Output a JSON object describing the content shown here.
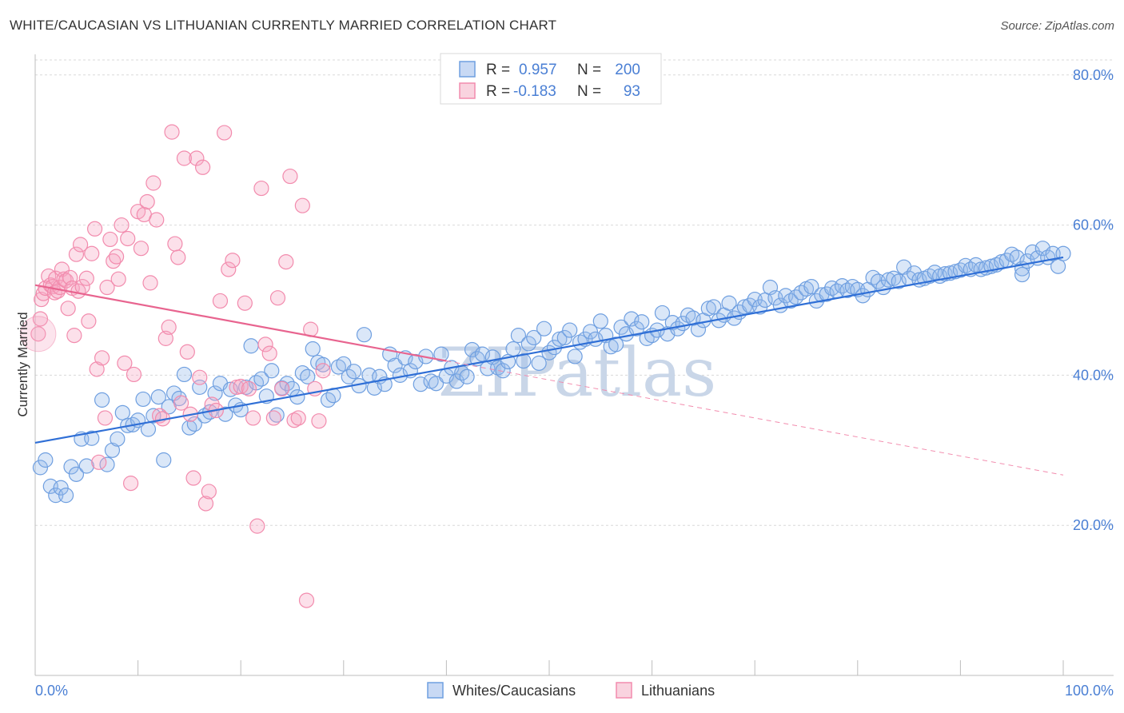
{
  "header": {
    "title": "WHITE/CAUCASIAN VS LITHUANIAN CURRENTLY MARRIED CORRELATION CHART",
    "source": "Source: ZipAtlas.com"
  },
  "watermark": "ZIPatlas",
  "legend": {
    "rows": [
      {
        "r_label": "R =",
        "r_value": "0.957",
        "n_label": "N =",
        "n_value": "200",
        "color": "#6f9fe0"
      },
      {
        "r_label": "R =",
        "r_value": "-0.183",
        "n_label": "N =",
        "n_value": "93",
        "color": "#f28bad"
      }
    ]
  },
  "bottom_legend": [
    {
      "label": "Whites/Caucasians",
      "color": "#6f9fe0"
    },
    {
      "label": "Lithuanians",
      "color": "#f28bad"
    }
  ],
  "chart_data": {
    "type": "scatter",
    "ylabel": "Currently Married",
    "xlabel": "",
    "xlim": [
      0,
      100
    ],
    "ylim": [
      0,
      82
    ],
    "x_tick_labels": [
      "0.0%",
      "100.0%"
    ],
    "y_ticks": [
      20,
      40,
      60,
      80
    ],
    "y_tick_labels": [
      "20.0%",
      "40.0%",
      "60.0%",
      "80.0%"
    ],
    "grid": true,
    "series": [
      {
        "name": "Whites/Caucasians",
        "color": "#6f9fe0",
        "trend": {
          "x": [
            0,
            100
          ],
          "y": [
            31.0,
            55.7
          ],
          "style": "solid"
        },
        "points": [
          [
            0.5,
            27.7
          ],
          [
            1,
            28.7
          ],
          [
            1.5,
            25.2
          ],
          [
            2,
            24.0
          ],
          [
            2.5,
            25.0
          ],
          [
            3,
            24.0
          ],
          [
            3.5,
            27.8
          ],
          [
            4,
            26.8
          ],
          [
            4.5,
            31.5
          ],
          [
            5,
            27.9
          ],
          [
            5.5,
            31.6
          ],
          [
            6.5,
            36.7
          ],
          [
            7,
            28.1
          ],
          [
            7.5,
            30.0
          ],
          [
            8,
            31.5
          ],
          [
            8.5,
            35.0
          ],
          [
            9,
            33.3
          ],
          [
            9.5,
            33.4
          ],
          [
            10,
            34.0
          ],
          [
            10.5,
            36.8
          ],
          [
            11,
            32.8
          ],
          [
            11.5,
            34.6
          ],
          [
            12,
            37.1
          ],
          [
            12.5,
            28.7
          ],
          [
            13,
            35.8
          ],
          [
            13.5,
            37.6
          ],
          [
            14,
            36.9
          ],
          [
            14.5,
            40.1
          ],
          [
            15,
            33.0
          ],
          [
            15.5,
            33.5
          ],
          [
            16,
            38.4
          ],
          [
            16.5,
            34.6
          ],
          [
            17,
            35.1
          ],
          [
            17.5,
            37.6
          ],
          [
            18,
            38.9
          ],
          [
            18.5,
            34.8
          ],
          [
            19,
            38.1
          ],
          [
            19.5,
            36.0
          ],
          [
            20,
            35.4
          ],
          [
            20.5,
            38.4
          ],
          [
            21,
            43.9
          ],
          [
            21.5,
            39.0
          ],
          [
            22,
            39.5
          ],
          [
            22.5,
            37.2
          ],
          [
            23,
            40.6
          ],
          [
            23.5,
            34.7
          ],
          [
            24,
            38.3
          ],
          [
            24.5,
            38.9
          ],
          [
            25,
            38.2
          ],
          [
            25.5,
            37.1
          ],
          [
            26,
            40.3
          ],
          [
            26.5,
            39.8
          ],
          [
            27,
            43.5
          ],
          [
            27.5,
            41.7
          ],
          [
            28,
            41.4
          ],
          [
            28.5,
            36.7
          ],
          [
            29,
            37.3
          ],
          [
            29.5,
            41.1
          ],
          [
            30,
            41.5
          ],
          [
            30.5,
            39.8
          ],
          [
            31,
            40.5
          ],
          [
            31.5,
            38.6
          ],
          [
            32,
            45.4
          ],
          [
            32.5,
            40.0
          ],
          [
            33,
            38.3
          ],
          [
            33.5,
            39.8
          ],
          [
            34,
            38.8
          ],
          [
            34.5,
            42.8
          ],
          [
            35,
            41.3
          ],
          [
            35.5,
            40.0
          ],
          [
            36,
            42.3
          ],
          [
            36.5,
            40.6
          ],
          [
            37,
            41.8
          ],
          [
            37.5,
            38.8
          ],
          [
            38,
            42.5
          ],
          [
            38.5,
            39.2
          ],
          [
            39,
            38.9
          ],
          [
            39.5,
            42.8
          ],
          [
            40,
            39.9
          ],
          [
            40.5,
            41.0
          ],
          [
            41,
            39.2
          ],
          [
            41.5,
            40.3
          ],
          [
            42,
            39.8
          ],
          [
            42.5,
            43.4
          ],
          [
            43,
            42.2
          ],
          [
            43.5,
            42.8
          ],
          [
            44,
            40.9
          ],
          [
            44.5,
            42.4
          ],
          [
            45,
            41.0
          ],
          [
            45.5,
            40.6
          ],
          [
            46,
            41.8
          ],
          [
            46.5,
            43.5
          ],
          [
            47,
            45.3
          ],
          [
            47.5,
            41.9
          ],
          [
            48,
            44.2
          ],
          [
            48.5,
            45.0
          ],
          [
            49,
            41.6
          ],
          [
            49.5,
            46.2
          ],
          [
            50,
            43.0
          ],
          [
            50.5,
            43.7
          ],
          [
            51,
            44.8
          ],
          [
            51.5,
            45.0
          ],
          [
            52,
            46.0
          ],
          [
            52.5,
            42.5
          ],
          [
            53,
            44.4
          ],
          [
            53.5,
            44.8
          ],
          [
            54,
            45.8
          ],
          [
            54.5,
            44.8
          ],
          [
            55,
            47.2
          ],
          [
            55.5,
            45.3
          ],
          [
            56,
            43.8
          ],
          [
            56.5,
            44.1
          ],
          [
            57,
            46.4
          ],
          [
            57.5,
            45.5
          ],
          [
            58,
            47.5
          ],
          [
            58.5,
            46.2
          ],
          [
            59,
            47.1
          ],
          [
            59.5,
            44.9
          ],
          [
            60,
            45.3
          ],
          [
            60.5,
            46.0
          ],
          [
            61,
            48.3
          ],
          [
            61.5,
            45.5
          ],
          [
            62,
            47.0
          ],
          [
            62.5,
            46.2
          ],
          [
            63,
            46.9
          ],
          [
            63.5,
            48.0
          ],
          [
            64,
            47.6
          ],
          [
            64.5,
            46.1
          ],
          [
            65,
            47.3
          ],
          [
            65.5,
            48.9
          ],
          [
            66,
            49.1
          ],
          [
            66.5,
            47.3
          ],
          [
            67,
            48.0
          ],
          [
            67.5,
            49.6
          ],
          [
            68,
            47.6
          ],
          [
            68.5,
            48.4
          ],
          [
            69,
            49.1
          ],
          [
            69.5,
            49.3
          ],
          [
            70,
            50.1
          ],
          [
            70.5,
            49.1
          ],
          [
            71,
            50.0
          ],
          [
            71.5,
            51.7
          ],
          [
            72,
            50.3
          ],
          [
            72.5,
            49.3
          ],
          [
            73,
            50.6
          ],
          [
            73.5,
            49.9
          ],
          [
            74,
            50.4
          ],
          [
            74.5,
            51.0
          ],
          [
            75,
            51.5
          ],
          [
            75.5,
            51.8
          ],
          [
            76,
            49.9
          ],
          [
            76.5,
            50.7
          ],
          [
            77,
            50.8
          ],
          [
            77.5,
            51.6
          ],
          [
            78,
            51.2
          ],
          [
            78.5,
            51.9
          ],
          [
            79,
            51.3
          ],
          [
            79.5,
            51.8
          ],
          [
            80,
            51.4
          ],
          [
            80.5,
            50.6
          ],
          [
            81,
            51.4
          ],
          [
            81.5,
            53.0
          ],
          [
            82,
            52.5
          ],
          [
            82.5,
            51.7
          ],
          [
            83,
            52.7
          ],
          [
            83.5,
            52.9
          ],
          [
            84,
            52.5
          ],
          [
            84.5,
            54.4
          ],
          [
            85,
            52.9
          ],
          [
            85.5,
            53.6
          ],
          [
            86,
            52.7
          ],
          [
            86.5,
            52.9
          ],
          [
            87,
            53.2
          ],
          [
            87.5,
            53.7
          ],
          [
            88,
            53.2
          ],
          [
            88.5,
            53.5
          ],
          [
            89,
            53.6
          ],
          [
            89.5,
            53.8
          ],
          [
            90,
            54.0
          ],
          [
            90.5,
            54.6
          ],
          [
            91,
            54.1
          ],
          [
            91.5,
            54.7
          ],
          [
            92,
            54.1
          ],
          [
            92.5,
            54.3
          ],
          [
            93,
            54.5
          ],
          [
            93.5,
            54.7
          ],
          [
            94,
            55.1
          ],
          [
            94.5,
            55.3
          ],
          [
            95,
            56.1
          ],
          [
            95.5,
            55.7
          ],
          [
            96,
            54.2
          ],
          [
            96.5,
            55.2
          ],
          [
            97,
            56.4
          ],
          [
            97.5,
            55.6
          ],
          [
            98,
            56.9
          ],
          [
            98.5,
            55.7
          ],
          [
            99,
            56.2
          ],
          [
            99.5,
            54.5
          ],
          [
            100,
            56.2
          ],
          [
            96,
            53.4
          ]
        ]
      },
      {
        "name": "Lithuanians",
        "color": "#f28bad",
        "trend": {
          "x": [
            0,
            40
          ],
          "y": [
            52.0,
            41.9
          ],
          "style": "solid"
        },
        "trend_ext": {
          "x": [
            40,
            100
          ],
          "y": [
            41.9,
            26.7
          ],
          "style": "dashed"
        },
        "points": [
          [
            0.3,
            45.5
          ],
          [
            0.5,
            47.5
          ],
          [
            0.6,
            50.1
          ],
          [
            0.8,
            50.9
          ],
          [
            1,
            51.6
          ],
          [
            1.3,
            53.2
          ],
          [
            1.5,
            52.0
          ],
          [
            1.7,
            51.8
          ],
          [
            1.9,
            51.0
          ],
          [
            2,
            52.9
          ],
          [
            2.2,
            51.2
          ],
          [
            2.4,
            51.7
          ],
          [
            2.6,
            54.1
          ],
          [
            2.8,
            52.8
          ],
          [
            3,
            52.6
          ],
          [
            3.2,
            48.9
          ],
          [
            3.4,
            53.0
          ],
          [
            3.6,
            51.6
          ],
          [
            3.8,
            45.3
          ],
          [
            4,
            56.1
          ],
          [
            4.2,
            51.2
          ],
          [
            4.4,
            57.4
          ],
          [
            4.6,
            51.8
          ],
          [
            5,
            52.9
          ],
          [
            5.2,
            47.2
          ],
          [
            5.5,
            56.2
          ],
          [
            5.8,
            59.5
          ],
          [
            6,
            40.8
          ],
          [
            6.2,
            28.4
          ],
          [
            6.5,
            42.3
          ],
          [
            6.8,
            34.3
          ],
          [
            7,
            51.7
          ],
          [
            7.3,
            58.1
          ],
          [
            7.6,
            55.2
          ],
          [
            7.9,
            55.8
          ],
          [
            8.1,
            52.8
          ],
          [
            8.4,
            60.0
          ],
          [
            8.7,
            41.6
          ],
          [
            9,
            58.2
          ],
          [
            9.3,
            25.6
          ],
          [
            9.6,
            40.1
          ],
          [
            10,
            61.8
          ],
          [
            10.3,
            56.9
          ],
          [
            10.6,
            61.4
          ],
          [
            10.9,
            63.1
          ],
          [
            11.2,
            52.3
          ],
          [
            11.5,
            65.6
          ],
          [
            11.8,
            60.7
          ],
          [
            12.1,
            34.6
          ],
          [
            12.4,
            34.2
          ],
          [
            12.7,
            44.9
          ],
          [
            13,
            46.4
          ],
          [
            13.3,
            72.4
          ],
          [
            13.6,
            57.5
          ],
          [
            13.9,
            55.7
          ],
          [
            14.2,
            36.3
          ],
          [
            14.5,
            68.9
          ],
          [
            14.8,
            43.1
          ],
          [
            15.1,
            34.8
          ],
          [
            15.4,
            26.3
          ],
          [
            15.7,
            68.9
          ],
          [
            16,
            39.7
          ],
          [
            16.3,
            67.7
          ],
          [
            16.6,
            22.9
          ],
          [
            16.9,
            24.5
          ],
          [
            17.2,
            36.1
          ],
          [
            17.6,
            35.3
          ],
          [
            18,
            49.9
          ],
          [
            18.4,
            72.3
          ],
          [
            18.8,
            54.1
          ],
          [
            19.2,
            55.3
          ],
          [
            19.6,
            38.4
          ],
          [
            20,
            38.5
          ],
          [
            20.4,
            49.6
          ],
          [
            20.8,
            38.2
          ],
          [
            21.2,
            34.3
          ],
          [
            21.6,
            19.9
          ],
          [
            22,
            64.9
          ],
          [
            22.4,
            44.1
          ],
          [
            22.8,
            42.9
          ],
          [
            23.2,
            34.3
          ],
          [
            23.6,
            50.3
          ],
          [
            24,
            38.2
          ],
          [
            24.4,
            55.1
          ],
          [
            24.8,
            66.5
          ],
          [
            25.2,
            34.0
          ],
          [
            25.6,
            34.3
          ],
          [
            26,
            62.6
          ],
          [
            26.4,
            10.0
          ],
          [
            26.8,
            46.1
          ],
          [
            27.2,
            38.2
          ],
          [
            27.6,
            33.9
          ],
          [
            28,
            40.6
          ]
        ]
      }
    ]
  }
}
